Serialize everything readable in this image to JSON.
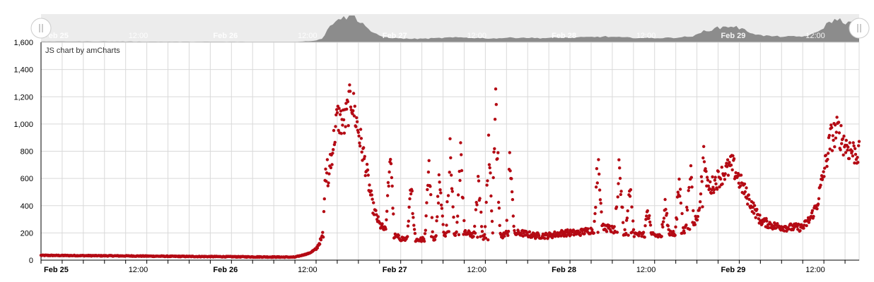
{
  "credit": "JS chart by amCharts",
  "colors": {
    "series": "#b40a14",
    "grid": "#d9d9d9",
    "axis": "#000000",
    "scrollbar_bg": "#ececec",
    "scrollbar_graph": "#8c8c8c",
    "label": "#000000",
    "scroll_label": "#ffffff"
  },
  "scrollbar": {
    "left_grip_icon": "drag-grip-icon",
    "right_grip_icon": "drag-grip-icon"
  },
  "chart_data": {
    "type": "scatter",
    "title": "",
    "xlabel": "",
    "ylabel": "",
    "x_ticks": [
      "Feb 25",
      "12:00",
      "Feb 26",
      "12:00",
      "Feb 27",
      "12:00",
      "Feb 28",
      "12:00",
      "Feb 29",
      "12:00"
    ],
    "x_tick_bold": [
      true,
      false,
      true,
      false,
      true,
      false,
      true,
      false,
      true,
      false
    ],
    "y_ticks": [
      "0",
      "200",
      "400",
      "600",
      "800",
      "1,000",
      "1,200",
      "1,400",
      "1,600"
    ],
    "xlim": [
      "Feb 25 00:00",
      "Feb 29 20:00"
    ],
    "ylim": [
      0,
      1600
    ],
    "grid": true,
    "legend": "none",
    "series": [
      {
        "profile_time": [
          "Feb 25 00:00",
          "Feb 25 06:00",
          "Feb 25 12:00",
          "Feb 25 18:00",
          "Feb 26 00:00",
          "Feb 26 06:00",
          "Feb 26 12:00",
          "Feb 26 14:00",
          "Feb 26 15:00",
          "Feb 26 16:00",
          "Feb 26 17:00",
          "Feb 26 18:00",
          "Feb 26 19:00",
          "Feb 26 20:00",
          "Feb 26 21:00",
          "Feb 26 22:00",
          "Feb 26 23:00",
          "Feb 27 00:00",
          "Feb 27 01:00",
          "Feb 27 02:00",
          "Feb 27 03:00",
          "Feb 27 04:00",
          "Feb 27 06:00",
          "Feb 27 08:00",
          "Feb 27 10:00",
          "Feb 27 12:00",
          "Feb 27 14:00",
          "Feb 27 16:00",
          "Feb 27 18:00",
          "Feb 27 20:00",
          "Feb 27 22:00",
          "Feb 28 00:00",
          "Feb 28 02:00",
          "Feb 28 04:00",
          "Feb 28 06:00",
          "Feb 28 08:00",
          "Feb 28 10:00",
          "Feb 28 12:00",
          "Feb 28 14:00",
          "Feb 28 16:00",
          "Feb 28 18:00",
          "Feb 28 20:00",
          "Feb 28 21:00",
          "Feb 28 22:00",
          "Feb 29 00:00",
          "Feb 29 02:00",
          "Feb 29 04:00",
          "Feb 29 06:00",
          "Feb 29 08:00",
          "Feb 29 10:00",
          "Feb 29 12:00",
          "Feb 29 13:00",
          "Feb 29 14:00",
          "Feb 29 15:00",
          "Feb 29 16:00",
          "Feb 29 17:00",
          "Feb 29 18:00",
          "Feb 29 19:00",
          "Feb 29 20:00"
        ],
        "profile_value": [
          35,
          33,
          31,
          28,
          26,
          24,
          22,
          50,
          80,
          180,
          700,
          1050,
          1000,
          1200,
          950,
          700,
          400,
          260,
          210,
          180,
          160,
          150,
          150,
          170,
          200,
          200,
          180,
          160,
          190,
          200,
          180,
          180,
          200,
          200,
          220,
          240,
          210,
          190,
          180,
          180,
          200,
          240,
          300,
          480,
          600,
          700,
          480,
          290,
          250,
          240,
          240,
          300,
          400,
          650,
          900,
          950,
          850,
          800,
          780
        ],
        "spikes": [
          {
            "time": "Feb 26 16:30",
            "value": 800
          },
          {
            "time": "Feb 27 01:30",
            "value": 950
          },
          {
            "time": "Feb 27 04:30",
            "value": 640
          },
          {
            "time": "Feb 27 07:00",
            "value": 830
          },
          {
            "time": "Feb 27 08:30",
            "value": 720
          },
          {
            "time": "Feb 27 10:00",
            "value": 980
          },
          {
            "time": "Feb 27 11:30",
            "value": 880
          },
          {
            "time": "Feb 27 14:00",
            "value": 760
          },
          {
            "time": "Feb 27 15:30",
            "value": 980
          },
          {
            "time": "Feb 27 16:30",
            "value": 1410
          },
          {
            "time": "Feb 27 18:30",
            "value": 880
          },
          {
            "time": "Feb 28 07:00",
            "value": 920
          },
          {
            "time": "Feb 28 10:00",
            "value": 880
          },
          {
            "time": "Feb 28 11:30",
            "value": 640
          },
          {
            "time": "Feb 28 14:00",
            "value": 450
          },
          {
            "time": "Feb 28 16:30",
            "value": 460
          },
          {
            "time": "Feb 28 18:30",
            "value": 660
          },
          {
            "time": "Feb 28 20:00",
            "value": 850
          },
          {
            "time": "Feb 28 22:00",
            "value": 870
          }
        ]
      }
    ]
  }
}
